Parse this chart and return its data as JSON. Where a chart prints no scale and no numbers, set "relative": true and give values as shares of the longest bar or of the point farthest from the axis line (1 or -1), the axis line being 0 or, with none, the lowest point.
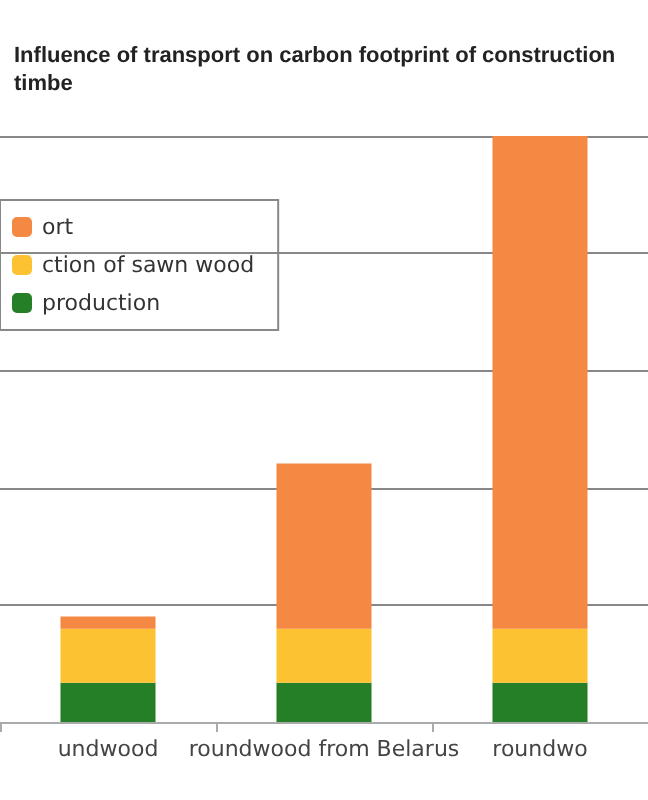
{
  "chart_data": {
    "type": "bar",
    "title": "Influence of transport on carbon footprint of construction timbe",
    "categories": [
      "undwood",
      "roundwood from Belarus",
      "roundwo"
    ],
    "stacked": true,
    "relative": true,
    "grid": "y",
    "legend": "top left",
    "series": [
      {
        "name": "production",
        "color": "#257f26",
        "values": [
          0.067,
          0.067,
          0.067
        ]
      },
      {
        "name": "ction of sawn wood",
        "color": "#fdc232",
        "values": [
          0.092,
          0.092,
          0.092
        ]
      },
      {
        "name": "ort",
        "color": "#f58842",
        "values": [
          0.021,
          0.282,
          0.841
        ]
      }
    ]
  }
}
